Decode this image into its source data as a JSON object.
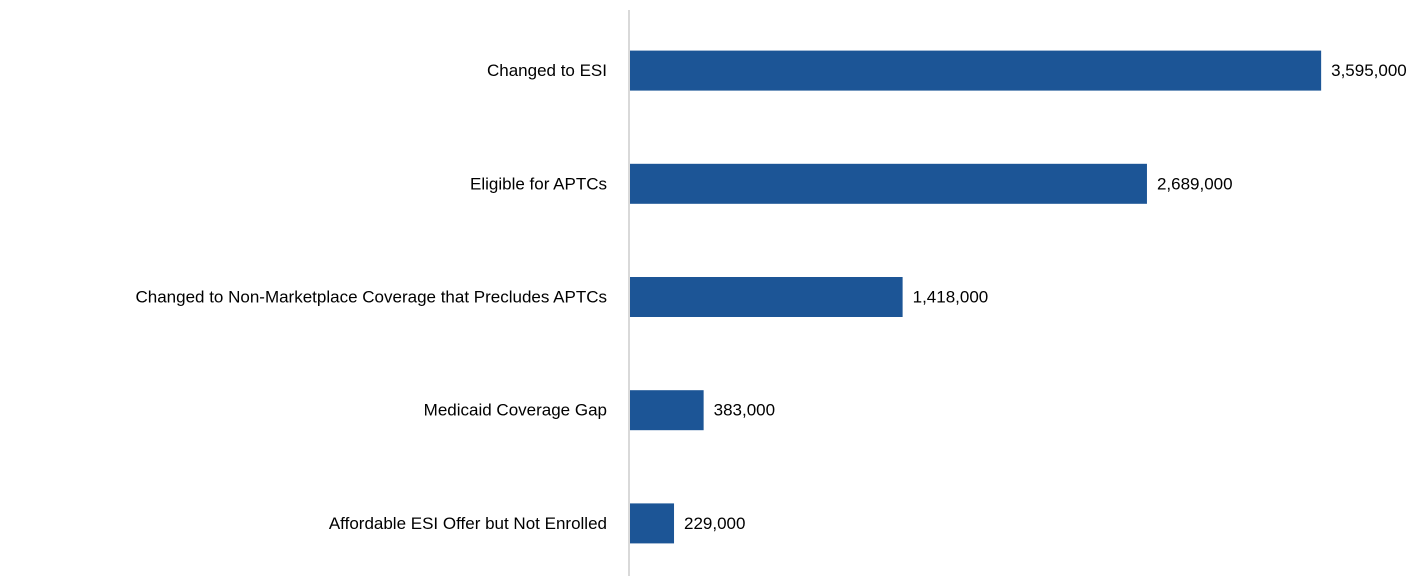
{
  "chart_data": {
    "type": "bar",
    "orientation": "horizontal",
    "categories": [
      "Changed to ESI",
      "Eligible for APTCs",
      "Changed to Non-Marketplace Coverage that Precludes APTCs",
      "Medicaid Coverage Gap",
      "Affordable ESI Offer but Not Enrolled"
    ],
    "values": [
      3595000,
      2689000,
      1418000,
      383000,
      229000
    ],
    "value_labels": [
      "3,595,000",
      "2,689,000",
      "1,418,000",
      "383,000",
      "229,000"
    ],
    "color": "#1c5596",
    "xlim": [
      0,
      4000000
    ]
  }
}
